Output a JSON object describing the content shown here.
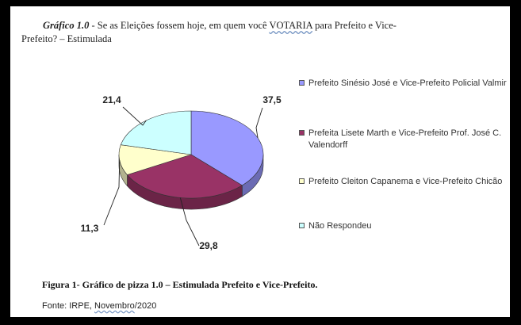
{
  "title": {
    "label": "Gráfico 1.0",
    "text_part1": " - Se as Eleições fossem hoje, em quem você ",
    "votaria": "VOTARIA",
    "text_part2": "  para Prefeito e Vice-",
    "line2": "Prefeito? – Estimulada"
  },
  "chart_data": {
    "type": "pie",
    "title": "",
    "slices": [
      {
        "label": "Prefeito Sinésio José e Vice-Prefeito Policial Valmir",
        "value": 37.5,
        "value_label": "37,5",
        "color": "#9999FF"
      },
      {
        "label": "Prefeita Lisete Marth e Vice-Prefeito Prof. José C. Valendorff",
        "value": 29.8,
        "value_label": "29,8",
        "color": "#993366"
      },
      {
        "label": "Prefeito Cleiton Capanema  e Vice-Prefeito Chicão",
        "value": 11.3,
        "value_label": "11,3",
        "color": "#FFFFCC"
      },
      {
        "label": "Não Respondeu",
        "value": 21.4,
        "value_label": "21,4",
        "color": "#CCFFFF"
      }
    ],
    "legend_position": "right"
  },
  "caption": "Figura 1- Gráfico de pizza 1.0 – Estimulada Prefeito e Vice-Prefeito.",
  "source": {
    "prefix": "Fonte: IRPE, ",
    "month": "Novembro",
    "suffix": "/2020"
  }
}
